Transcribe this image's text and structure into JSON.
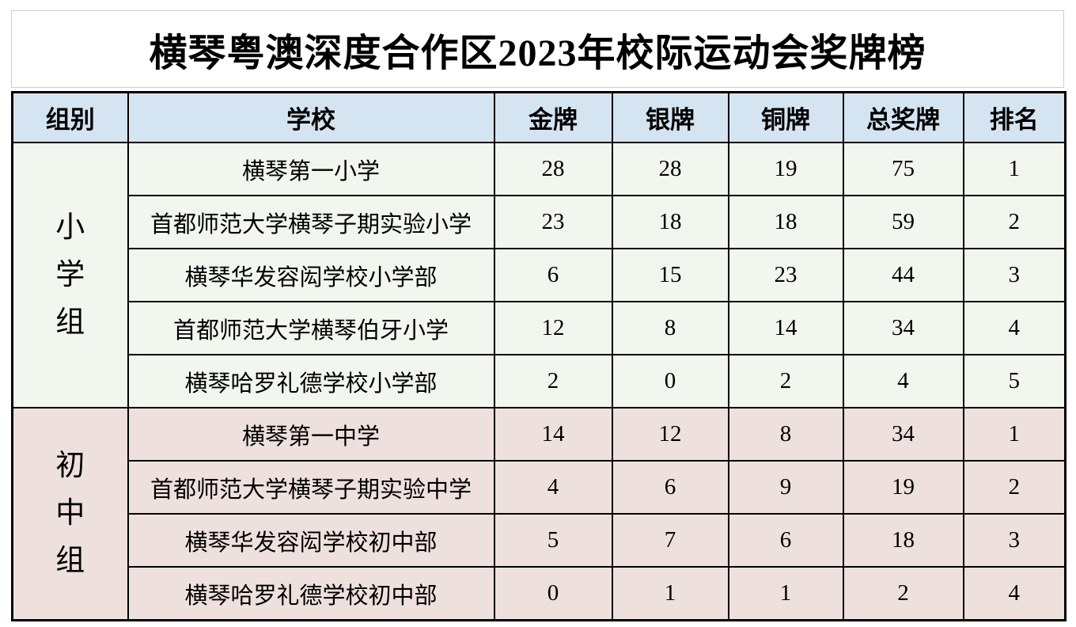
{
  "title": "横琴粤澳深度合作区2023年校际运动会奖牌榜",
  "colors": {
    "header_bg": "#d5e4f1",
    "primary_group_bg": "#f1f6ee",
    "junior_group_bg": "#eee0dd",
    "grid_border": "#000000",
    "title_border": "#c9cdd6"
  },
  "table": {
    "columns": [
      "组别",
      "学校",
      "金牌",
      "银牌",
      "铜牌",
      "总奖牌",
      "排名"
    ],
    "groups": [
      {
        "label": "小学组",
        "bg": "#f1f6ee",
        "rows": [
          {
            "school": "横琴第一小学",
            "gold": "28",
            "silver": "28",
            "bronze": "19",
            "total": "75",
            "rank": "1"
          },
          {
            "school": "首都师范大学横琴子期实验小学",
            "gold": "23",
            "silver": "18",
            "bronze": "18",
            "total": "59",
            "rank": "2"
          },
          {
            "school": "横琴华发容闳学校小学部",
            "gold": "6",
            "silver": "15",
            "bronze": "23",
            "total": "44",
            "rank": "3"
          },
          {
            "school": "首都师范大学横琴伯牙小学",
            "gold": "12",
            "silver": "8",
            "bronze": "14",
            "total": "34",
            "rank": "4"
          },
          {
            "school": "横琴哈罗礼德学校小学部",
            "gold": "2",
            "silver": "0",
            "bronze": "2",
            "total": "4",
            "rank": "5"
          }
        ]
      },
      {
        "label": "初中组",
        "bg": "#eee0dd",
        "rows": [
          {
            "school": "横琴第一中学",
            "gold": "14",
            "silver": "12",
            "bronze": "8",
            "total": "34",
            "rank": "1"
          },
          {
            "school": "首都师范大学横琴子期实验中学",
            "gold": "4",
            "silver": "6",
            "bronze": "9",
            "total": "19",
            "rank": "2"
          },
          {
            "school": "横琴华发容闳学校初中部",
            "gold": "5",
            "silver": "7",
            "bronze": "6",
            "total": "18",
            "rank": "3"
          },
          {
            "school": "横琴哈罗礼德学校初中部",
            "gold": "0",
            "silver": "1",
            "bronze": "1",
            "total": "2",
            "rank": "4"
          }
        ]
      }
    ]
  }
}
